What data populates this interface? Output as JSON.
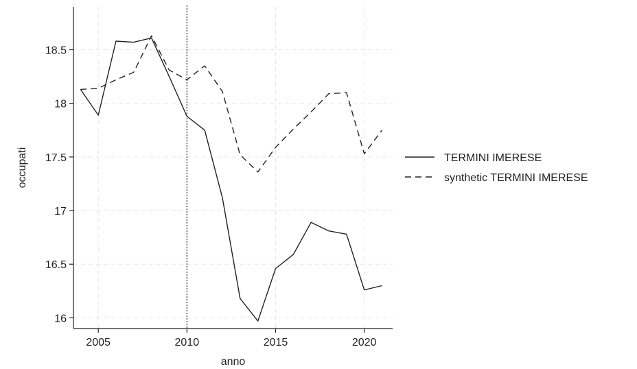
{
  "chart_data": {
    "type": "line",
    "xlabel": "anno",
    "ylabel": "occupati",
    "xlim": [
      2003.6,
      2021.6
    ],
    "ylim": [
      15.9,
      18.9
    ],
    "x_ticks": [
      2005,
      2010,
      2015,
      2020
    ],
    "x_tick_labels": [
      "2005",
      "2010",
      "2015",
      "2020"
    ],
    "y_ticks": [
      16,
      16.5,
      17,
      17.5,
      18,
      18.5
    ],
    "y_tick_labels": [
      "16",
      "16.5",
      "17",
      "17.5",
      "18",
      "18.5"
    ],
    "grid": true,
    "legend_position": "right",
    "reference_line": {
      "x": 2010,
      "style": "dotted"
    },
    "series": [
      {
        "name": "TERMINI IMERESE",
        "style": "solid",
        "color": "#222222",
        "x": [
          2004,
          2005,
          2006,
          2007,
          2008,
          2009,
          2010,
          2011,
          2012,
          2013,
          2014,
          2015,
          2016,
          2017,
          2018,
          2019,
          2020,
          2021
        ],
        "y": [
          18.13,
          17.89,
          18.58,
          18.57,
          18.61,
          18.25,
          17.88,
          17.75,
          17.12,
          16.18,
          15.97,
          16.46,
          16.59,
          16.89,
          16.81,
          16.78,
          16.26,
          16.3
        ]
      },
      {
        "name": "synthetic TERMINI IMERESE",
        "style": "dashed",
        "color": "#222222",
        "x": [
          2004,
          2005,
          2006,
          2007,
          2008,
          2009,
          2010,
          2011,
          2012,
          2013,
          2014,
          2015,
          2016,
          2017,
          2018,
          2019,
          2020,
          2021
        ],
        "y": [
          18.13,
          18.14,
          18.22,
          18.29,
          18.63,
          18.31,
          18.22,
          18.35,
          18.11,
          17.52,
          17.36,
          17.59,
          17.76,
          17.92,
          18.09,
          18.1,
          17.53,
          17.75
        ]
      }
    ]
  }
}
